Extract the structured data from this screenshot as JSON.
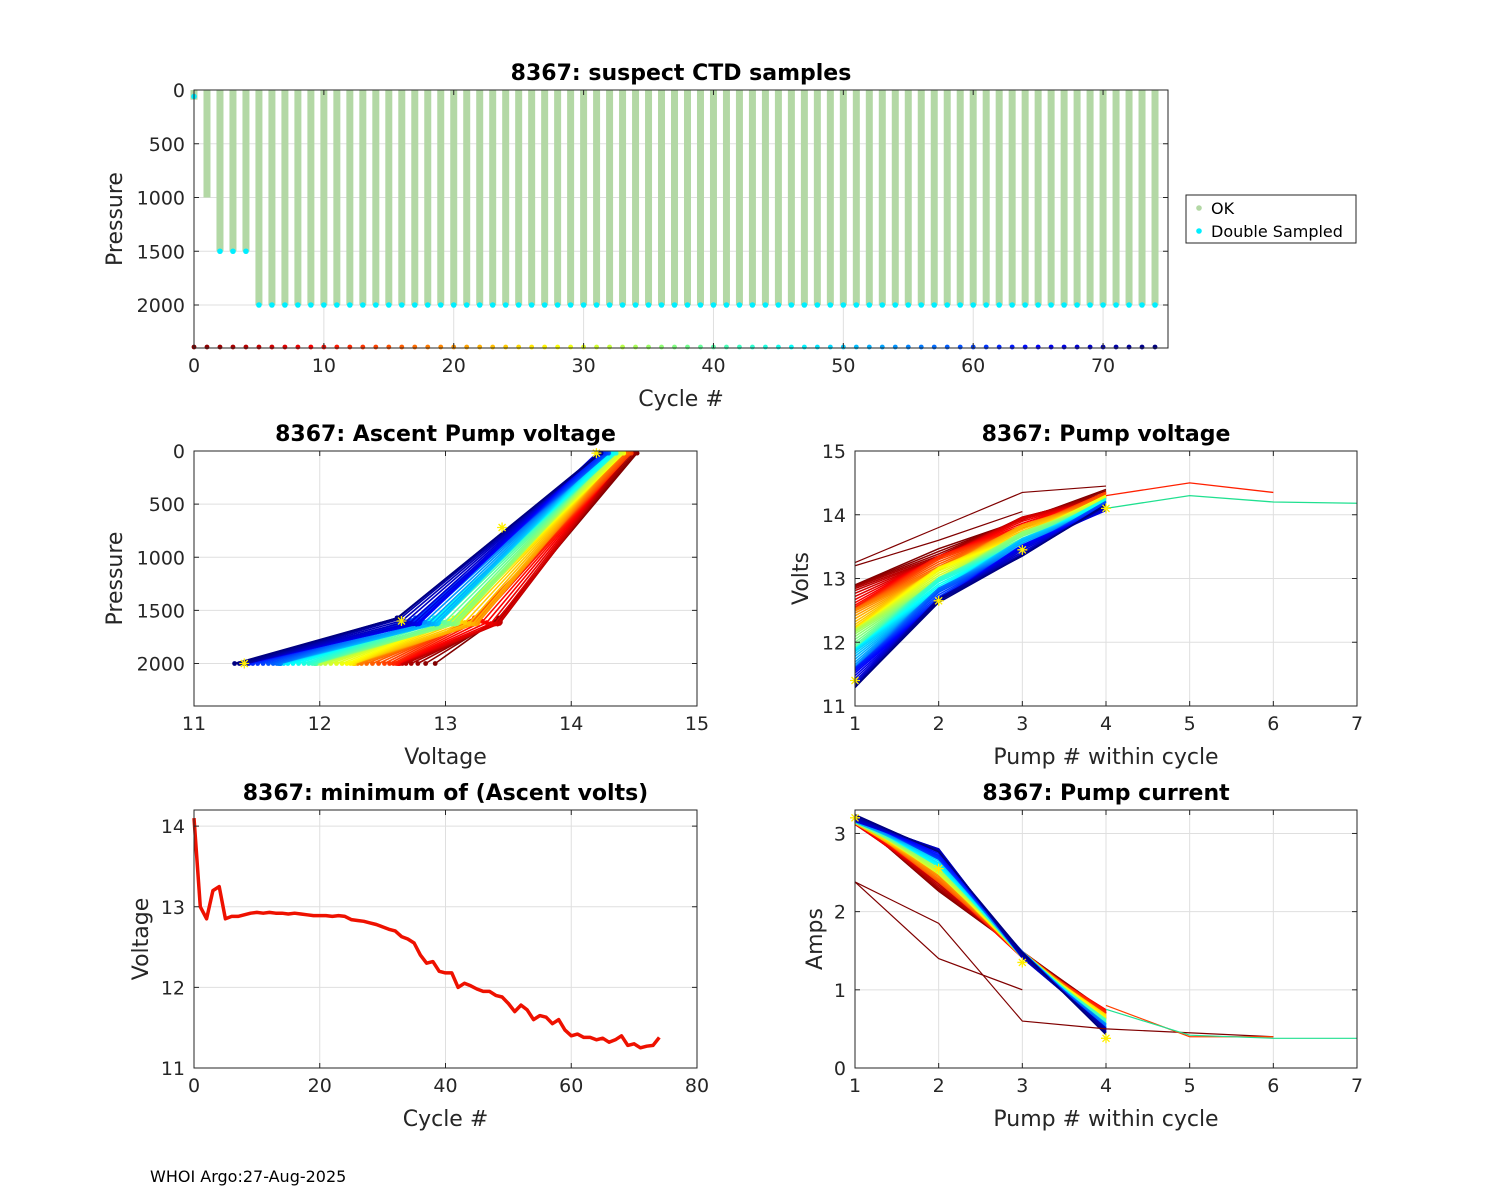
{
  "footer": "WHOI Argo:27-Aug-2025",
  "chart_data": [
    {
      "id": "suspect",
      "type": "scatter",
      "title": "8367: suspect CTD samples",
      "xlabel": "Cycle #",
      "ylabel": "Pressure",
      "xlim": [
        0,
        75
      ],
      "ylim": [
        0,
        2400
      ],
      "y_reversed": true,
      "xticks": [
        0,
        10,
        20,
        30,
        40,
        50,
        60,
        70
      ],
      "yticks": [
        0,
        500,
        1000,
        1500,
        2000
      ],
      "grid": true,
      "legend_position": "outside-right",
      "legend": [
        {
          "label": "OK",
          "color": "#b3d8a5"
        },
        {
          "label": "Double Sampled",
          "color": "#00eeff"
        }
      ],
      "profiles": [
        {
          "cycle": 0,
          "max_pressure": 90
        },
        {
          "cycle": 1,
          "max_pressure": 1000
        },
        {
          "cycle": 2,
          "max_pressure": 1500
        },
        {
          "cycle": 3,
          "max_pressure": 1500
        },
        {
          "cycle": 4,
          "max_pressure": 1500
        },
        {
          "cycle_range": [
            5,
            74
          ],
          "max_pressure": 2000
        }
      ],
      "double_sampled": [
        {
          "cycle": 0,
          "pressure": 60
        },
        {
          "cycle": 2,
          "pressure": 1500
        },
        {
          "cycle": 3,
          "pressure": 1500
        },
        {
          "cycle": 4,
          "pressure": 1500
        },
        {
          "cycle_range": [
            5,
            74
          ],
          "pressure": 2000
        }
      ],
      "cycle_markers_pressure": 2400
    },
    {
      "id": "ascent",
      "type": "line",
      "title": "8367: Ascent Pump voltage",
      "xlabel": "Voltage",
      "ylabel": "Pressure",
      "xlim": [
        11,
        15
      ],
      "ylim": [
        0,
        2400
      ],
      "y_reversed": true,
      "xticks": [
        11,
        12,
        13,
        14,
        15
      ],
      "yticks": [
        0,
        500,
        1000,
        1500,
        2000
      ],
      "grid": true,
      "series_description": "one line per cycle, colored by cycle (jet colormap)",
      "early_cycle_voltage": {
        "p2000": 12.9,
        "p1600": 13.45,
        "p0": 14.5
      },
      "late_cycle_voltage": {
        "p2000": 11.3,
        "p1600": 12.65,
        "p0": 14.2
      },
      "min_markers": [
        [
          11.4,
          2000
        ],
        [
          12.65,
          1600
        ],
        [
          13.45,
          720
        ],
        [
          14.2,
          20
        ]
      ]
    },
    {
      "id": "pumpvolt",
      "type": "line",
      "title": "8367: Pump voltage",
      "xlabel": "Pump # within cycle",
      "ylabel": "Volts",
      "xlim": [
        1,
        7
      ],
      "ylim": [
        11,
        15
      ],
      "xticks": [
        1,
        2,
        3,
        4,
        5,
        6,
        7
      ],
      "yticks": [
        11,
        12,
        13,
        14,
        15
      ],
      "grid": true,
      "early_cycle_volts": [
        12.9,
        13.45,
        13.95,
        14.35
      ],
      "late_cycle_volts": [
        11.3,
        12.6,
        13.4,
        14.1
      ],
      "extended_pumps": [
        {
          "x": [
            4,
            5,
            6
          ],
          "y": [
            14.3,
            14.5,
            14.35
          ],
          "color": "#ff2000"
        },
        {
          "x": [
            4,
            5,
            6,
            7
          ],
          "y": [
            14.1,
            14.3,
            14.2,
            14.18
          ],
          "color": "#20e090"
        }
      ],
      "min_markers": [
        [
          1,
          11.4
        ],
        [
          2,
          12.65
        ],
        [
          3,
          13.45
        ],
        [
          4,
          14.1
        ]
      ]
    },
    {
      "id": "minvolts",
      "type": "line",
      "title": "8367: minimum of (Ascent volts)",
      "xlabel": "Cycle #",
      "ylabel": "Voltage",
      "xlim": [
        0,
        80
      ],
      "ylim": [
        11,
        14.2
      ],
      "xticks": [
        0,
        20,
        40,
        60,
        80
      ],
      "yticks": [
        11,
        12,
        13,
        14
      ],
      "grid": true,
      "color": "#ee1100",
      "x": [
        0,
        1,
        2,
        3,
        4,
        5,
        6,
        7,
        8,
        9,
        10,
        11,
        12,
        13,
        14,
        15,
        16,
        17,
        18,
        19,
        20,
        21,
        22,
        23,
        24,
        25,
        26,
        27,
        28,
        29,
        30,
        31,
        32,
        33,
        34,
        35,
        36,
        37,
        38,
        39,
        40,
        41,
        42,
        43,
        44,
        45,
        46,
        47,
        48,
        49,
        50,
        51,
        52,
        53,
        54,
        55,
        56,
        57,
        58,
        59,
        60,
        61,
        62,
        63,
        64,
        65,
        66,
        67,
        68,
        69,
        70,
        71,
        72,
        73,
        74
      ],
      "y": [
        14.1,
        13.0,
        12.85,
        13.2,
        13.25,
        12.85,
        12.88,
        12.88,
        12.9,
        12.92,
        12.93,
        12.92,
        12.93,
        12.92,
        12.92,
        12.91,
        12.92,
        12.91,
        12.9,
        12.89,
        12.89,
        12.89,
        12.88,
        12.89,
        12.88,
        12.84,
        12.83,
        12.82,
        12.8,
        12.78,
        12.75,
        12.72,
        12.7,
        12.63,
        12.6,
        12.55,
        12.4,
        12.3,
        12.32,
        12.2,
        12.18,
        12.18,
        12.0,
        12.05,
        12.02,
        11.98,
        11.95,
        11.95,
        11.9,
        11.88,
        11.8,
        11.7,
        11.78,
        11.72,
        11.6,
        11.65,
        11.63,
        11.55,
        11.6,
        11.47,
        11.4,
        11.42,
        11.38,
        11.38,
        11.35,
        11.37,
        11.32,
        11.35,
        11.4,
        11.28,
        11.3,
        11.25,
        11.27,
        11.28,
        11.38
      ]
    },
    {
      "id": "pumpcurr",
      "type": "line",
      "title": "8367: Pump current",
      "xlabel": "Pump # within cycle",
      "ylabel": "Amps",
      "xlim": [
        1,
        7
      ],
      "ylim": [
        0,
        3.3
      ],
      "xticks": [
        1,
        2,
        3,
        4,
        5,
        6,
        7
      ],
      "yticks": [
        0,
        1,
        2,
        3
      ],
      "grid": true,
      "early_cycle_amps": [
        3.15,
        2.3,
        1.45,
        0.75
      ],
      "late_cycle_amps": [
        3.2,
        2.8,
        1.45,
        0.45
      ],
      "anomalous_lines": [
        {
          "x": [
            1,
            2,
            3,
            4,
            6
          ],
          "y": [
            2.38,
            1.85,
            0.6,
            0.5,
            0.4
          ],
          "color": "#800000"
        },
        {
          "x": [
            1,
            2,
            3
          ],
          "y": [
            2.38,
            1.4,
            1.0
          ],
          "color": "#800000"
        },
        {
          "x": [
            4,
            5,
            6
          ],
          "y": [
            0.8,
            0.4,
            0.4
          ],
          "color": "#ff4000"
        },
        {
          "x": [
            4,
            5,
            6,
            7
          ],
          "y": [
            0.75,
            0.42,
            0.38,
            0.38
          ],
          "color": "#20e090"
        }
      ],
      "min_markers": [
        [
          1,
          3.2
        ],
        [
          2,
          2.55
        ],
        [
          3,
          1.35
        ],
        [
          4,
          0.38
        ]
      ]
    }
  ]
}
